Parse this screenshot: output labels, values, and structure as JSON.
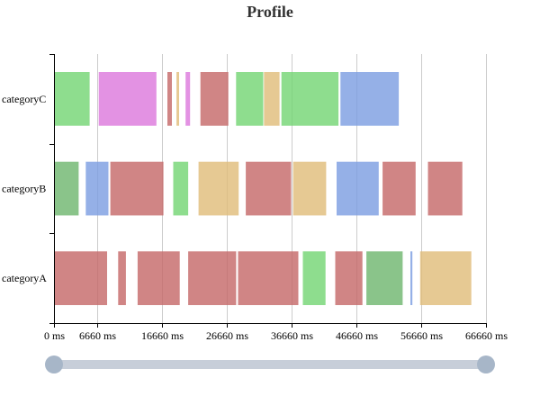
{
  "chart_data": {
    "type": "timeline",
    "title": "Profile",
    "xlabel": "",
    "ylabel": "",
    "xlim": [
      0,
      66660
    ],
    "x_ticks": [
      0,
      6660,
      16660,
      26660,
      36660,
      46660,
      56660,
      66660
    ],
    "x_tick_labels": [
      "0 ms",
      "6660 ms",
      "16660 ms",
      "26660 ms",
      "36660 ms",
      "46660 ms",
      "56660 ms",
      "66660 ms"
    ],
    "grid": true,
    "categories": [
      "categoryA",
      "categoryB",
      "categoryC"
    ],
    "colors": {
      "red": "#c46666",
      "green": "#72d572",
      "darkgreen": "#6db56d",
      "blue": "#7b9ce1",
      "orange": "#e0bc78",
      "pink": "#dc77dc"
    },
    "series": [
      {
        "category": "categoryA",
        "segments": [
          {
            "start": 0,
            "end": 8200,
            "color": "red"
          },
          {
            "start": 9900,
            "end": 11100,
            "color": "red"
          },
          {
            "start": 12900,
            "end": 19400,
            "color": "red"
          },
          {
            "start": 20700,
            "end": 28100,
            "color": "red"
          },
          {
            "start": 28400,
            "end": 37700,
            "color": "red"
          },
          {
            "start": 38400,
            "end": 41900,
            "color": "green"
          },
          {
            "start": 43400,
            "end": 47600,
            "color": "red"
          },
          {
            "start": 48200,
            "end": 53800,
            "color": "darkgreen"
          },
          {
            "start": 55000,
            "end": 55300,
            "color": "blue"
          },
          {
            "start": 56500,
            "end": 64400,
            "color": "orange"
          }
        ]
      },
      {
        "category": "categoryB",
        "segments": [
          {
            "start": 0,
            "end": 3800,
            "color": "darkgreen"
          },
          {
            "start": 4900,
            "end": 8400,
            "color": "blue"
          },
          {
            "start": 8700,
            "end": 16900,
            "color": "red"
          },
          {
            "start": 18400,
            "end": 20700,
            "color": "green"
          },
          {
            "start": 22300,
            "end": 28500,
            "color": "orange"
          },
          {
            "start": 29600,
            "end": 36600,
            "color": "red"
          },
          {
            "start": 36900,
            "end": 42000,
            "color": "orange"
          },
          {
            "start": 43600,
            "end": 50100,
            "color": "blue"
          },
          {
            "start": 50700,
            "end": 55800,
            "color": "red"
          },
          {
            "start": 57700,
            "end": 63000,
            "color": "red"
          }
        ]
      },
      {
        "category": "categoryC",
        "segments": [
          {
            "start": 0,
            "end": 5500,
            "color": "green"
          },
          {
            "start": 6900,
            "end": 15800,
            "color": "pink"
          },
          {
            "start": 17500,
            "end": 18200,
            "color": "red"
          },
          {
            "start": 18900,
            "end": 19300,
            "color": "orange"
          },
          {
            "start": 20300,
            "end": 21000,
            "color": "pink"
          },
          {
            "start": 22600,
            "end": 26900,
            "color": "red"
          },
          {
            "start": 28100,
            "end": 32300,
            "color": "green"
          },
          {
            "start": 32400,
            "end": 34800,
            "color": "orange"
          },
          {
            "start": 35100,
            "end": 43900,
            "color": "green"
          },
          {
            "start": 44200,
            "end": 53200,
            "color": "blue"
          }
        ]
      }
    ]
  },
  "slider": {
    "range_start": 0,
    "range_end": 66660,
    "colors": {
      "track": "#c7ced9",
      "handle": "#a7b6c8"
    }
  }
}
